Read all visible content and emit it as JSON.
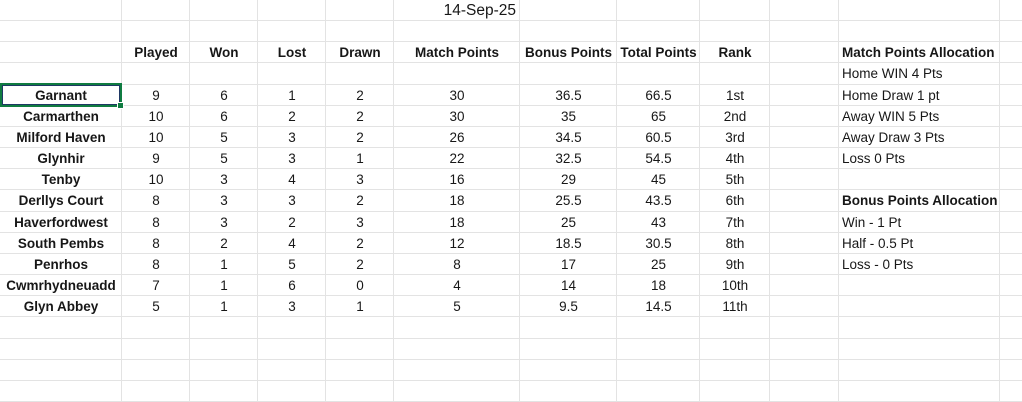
{
  "title": {
    "date": "14-Sep-25"
  },
  "table": {
    "headers": [
      "Played",
      "Won",
      "Lost",
      "Drawn",
      "Match Points",
      "Bonus Points",
      "Total Points",
      "Rank"
    ],
    "rows": [
      {
        "name": "Garnant",
        "values": [
          "9",
          "6",
          "1",
          "2",
          "30",
          "36.5",
          "66.5",
          "1st"
        ]
      },
      {
        "name": "Carmarthen",
        "values": [
          "10",
          "6",
          "2",
          "2",
          "30",
          "35",
          "65",
          "2nd"
        ]
      },
      {
        "name": "Milford Haven",
        "values": [
          "10",
          "5",
          "3",
          "2",
          "26",
          "34.5",
          "60.5",
          "3rd"
        ]
      },
      {
        "name": "Glynhir",
        "values": [
          "9",
          "5",
          "3",
          "1",
          "22",
          "32.5",
          "54.5",
          "4th"
        ]
      },
      {
        "name": "Tenby",
        "values": [
          "10",
          "3",
          "4",
          "3",
          "16",
          "29",
          "45",
          "5th"
        ]
      },
      {
        "name": "Derllys Court",
        "values": [
          "8",
          "3",
          "3",
          "2",
          "18",
          "25.5",
          "43.5",
          "6th"
        ]
      },
      {
        "name": "Haverfordwest",
        "values": [
          "8",
          "3",
          "2",
          "3",
          "18",
          "25",
          "43",
          "7th"
        ]
      },
      {
        "name": "South Pembs",
        "values": [
          "8",
          "2",
          "4",
          "2",
          "12",
          "18.5",
          "30.5",
          "8th"
        ]
      },
      {
        "name": "Penrhos",
        "values": [
          "8",
          "1",
          "5",
          "2",
          "8",
          "17",
          "25",
          "9th"
        ]
      },
      {
        "name": "Cwmrhydneuadd",
        "values": [
          "7",
          "1",
          "6",
          "0",
          "4",
          "14",
          "18",
          "10th"
        ]
      },
      {
        "name": "Glyn Abbey",
        "values": [
          "5",
          "1",
          "3",
          "1",
          "5",
          "9.5",
          "14.5",
          "11th"
        ]
      }
    ]
  },
  "allocations": {
    "match": {
      "title": "Match Points Allocation",
      "lines": [
        "Home WIN 4 Pts",
        "Home Draw 1 pt",
        "Away WIN 5 Pts",
        "Away Draw 3 Pts",
        "Loss 0 Pts"
      ]
    },
    "bonus": {
      "title": "Bonus Points Allocation",
      "lines": [
        "Win - 1 Pt",
        "Half - 0.5 Pt",
        "Loss - 0 Pts"
      ]
    }
  },
  "selection": {
    "selected_team": "Garnant"
  },
  "colors": {
    "selection_green": "#107C41",
    "selected_cell_border": "#1F3864",
    "gridline": "#E3E3E3",
    "text": "#171717"
  }
}
